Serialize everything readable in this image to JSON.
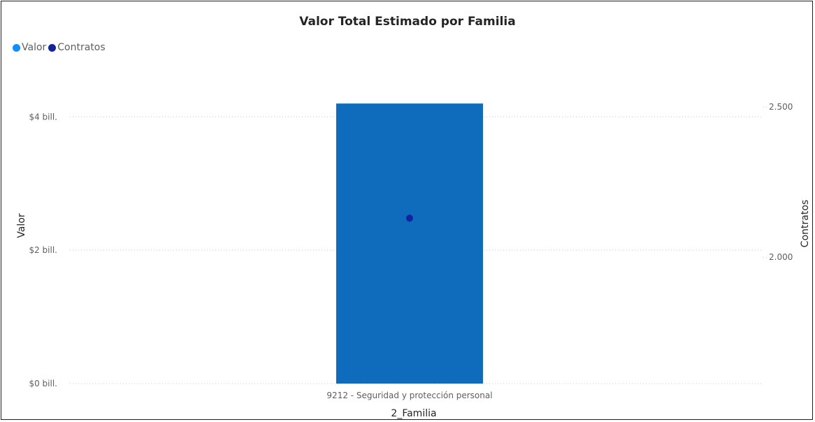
{
  "chart_data": {
    "type": "bar",
    "title": "Valor Total Estimado por Familia",
    "xlabel": "2_Familia",
    "ylabel": "Valor",
    "y2label": "Contratos",
    "categories": [
      "9212 - Seguridad y protección personal"
    ],
    "series": [
      {
        "name": "Valor",
        "kind": "bar",
        "axis": "left",
        "color": "#118DFF",
        "bar_color": "#0F6CBD",
        "values": [
          4.2
        ]
      },
      {
        "name": "Contratos",
        "kind": "point",
        "axis": "right",
        "color": "#12239E",
        "values": [
          2130
        ]
      }
    ],
    "ylim": [
      0,
      4.6
    ],
    "yticks": [
      0,
      2,
      4
    ],
    "ytick_labels": [
      "$0 bill.",
      "$2 bill.",
      "$4 bill."
    ],
    "y2lim": [
      1580,
      2600
    ],
    "y2ticks": [
      2000,
      2500
    ],
    "y2tick_labels": [
      "2.000",
      "2.500"
    ],
    "grid": true,
    "legend_position": "top-left"
  }
}
